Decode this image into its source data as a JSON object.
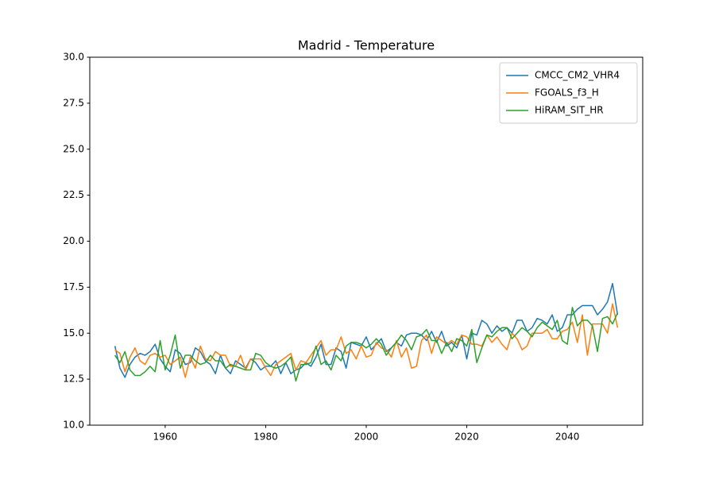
{
  "chart_data": {
    "type": "line",
    "title": "Madrid - Temperature",
    "x": [
      1950,
      1951,
      1952,
      1953,
      1954,
      1955,
      1956,
      1957,
      1958,
      1959,
      1960,
      1961,
      1962,
      1963,
      1964,
      1965,
      1966,
      1967,
      1968,
      1969,
      1970,
      1971,
      1972,
      1973,
      1974,
      1975,
      1976,
      1977,
      1978,
      1979,
      1980,
      1981,
      1982,
      1983,
      1984,
      1985,
      1986,
      1987,
      1988,
      1989,
      1990,
      1991,
      1992,
      1993,
      1994,
      1995,
      1996,
      1997,
      1998,
      1999,
      2000,
      2001,
      2002,
      2003,
      2004,
      2005,
      2006,
      2007,
      2008,
      2009,
      2010,
      2011,
      2012,
      2013,
      2014,
      2015,
      2016,
      2017,
      2018,
      2019,
      2020,
      2021,
      2022,
      2023,
      2024,
      2025,
      2026,
      2027,
      2028,
      2029,
      2030,
      2031,
      2032,
      2033,
      2034,
      2035,
      2036,
      2037,
      2038,
      2039,
      2040,
      2041,
      2042,
      2043,
      2044,
      2045,
      2046,
      2047,
      2048,
      2049,
      2050
    ],
    "series": [
      {
        "name": "CMCC_CM2_VHR4",
        "color": "#1f77b4",
        "values": [
          14.3,
          13.1,
          12.6,
          13.3,
          13.7,
          13.9,
          13.8,
          14.0,
          14.4,
          13.6,
          13.2,
          12.9,
          14.1,
          13.9,
          13.3,
          13.4,
          14.2,
          14.0,
          13.5,
          13.3,
          12.8,
          13.8,
          13.1,
          12.8,
          13.5,
          13.3,
          13.1,
          13.6,
          13.4,
          13.0,
          13.2,
          13.2,
          13.5,
          12.8,
          13.4,
          12.8,
          13.0,
          13.1,
          13.4,
          13.2,
          13.7,
          14.4,
          13.3,
          13.3,
          14.2,
          14.0,
          13.1,
          14.5,
          14.4,
          14.3,
          14.8,
          14.1,
          14.4,
          14.7,
          14.0,
          14.2,
          14.5,
          14.3,
          14.9,
          15.0,
          15.0,
          14.9,
          14.6,
          15.1,
          14.5,
          15.1,
          14.3,
          14.5,
          14.2,
          14.9,
          13.6,
          15.0,
          14.9,
          15.7,
          15.5,
          15.0,
          15.4,
          15.1,
          15.3,
          15.0,
          15.7,
          15.7,
          15.1,
          15.3,
          15.8,
          15.7,
          15.5,
          16.0,
          15.1,
          15.3,
          16.0,
          16.0,
          16.3,
          16.5,
          16.5,
          16.5,
          16.0,
          16.3,
          16.7,
          17.7,
          16.0
        ]
      },
      {
        "name": "FGOALS_f3_H",
        "color": "#ff7f0e",
        "values": [
          14.1,
          13.9,
          12.9,
          13.7,
          14.2,
          13.5,
          13.3,
          13.8,
          13.9,
          13.7,
          13.8,
          13.3,
          13.5,
          13.7,
          12.6,
          13.7,
          13.1,
          14.3,
          13.6,
          13.5,
          14.0,
          13.8,
          13.8,
          13.2,
          13.2,
          13.8,
          13.0,
          13.6,
          13.6,
          13.6,
          13.1,
          12.7,
          13.3,
          13.5,
          13.7,
          13.9,
          13.0,
          13.5,
          13.4,
          13.8,
          14.2,
          14.6,
          13.8,
          14.1,
          14.1,
          14.8,
          13.9,
          14.1,
          13.6,
          14.3,
          13.7,
          13.8,
          14.5,
          14.2,
          14.1,
          13.7,
          14.6,
          13.7,
          14.2,
          13.1,
          13.2,
          14.6,
          14.9,
          13.9,
          14.8,
          14.6,
          14.4,
          14.6,
          14.4,
          14.9,
          14.8,
          14.4,
          14.4,
          14.3,
          14.9,
          14.5,
          14.8,
          14.4,
          14.1,
          15.0,
          14.7,
          14.1,
          14.3,
          15.0,
          15.0,
          15.0,
          15.2,
          14.7,
          14.7,
          15.1,
          15.2,
          15.6,
          14.5,
          16.0,
          13.8,
          15.5,
          15.5,
          15.5,
          15.0,
          16.6,
          15.3
        ]
      },
      {
        "name": "HiRAM_SIT_HR",
        "color": "#2ca02c",
        "values": [
          13.8,
          13.4,
          14.0,
          13.0,
          12.7,
          12.7,
          12.9,
          13.2,
          12.9,
          14.6,
          13.0,
          13.8,
          14.9,
          13.1,
          13.8,
          13.8,
          13.5,
          13.3,
          13.4,
          13.8,
          13.5,
          13.5,
          13.1,
          13.3,
          13.2,
          13.1,
          13.0,
          13.0,
          13.9,
          13.8,
          13.4,
          13.2,
          13.1,
          13.2,
          13.4,
          13.7,
          12.4,
          13.3,
          13.3,
          13.4,
          14.3,
          13.3,
          13.5,
          13.0,
          13.8,
          13.5,
          14.3,
          14.5,
          14.5,
          14.4,
          14.2,
          14.4,
          14.7,
          14.4,
          13.8,
          14.2,
          14.5,
          14.9,
          14.6,
          14.1,
          14.8,
          14.9,
          15.2,
          14.6,
          14.6,
          13.9,
          14.5,
          14.0,
          14.7,
          14.6,
          14.3,
          15.2,
          13.4,
          14.2,
          14.9,
          14.8,
          15.1,
          15.3,
          15.3,
          14.7,
          15.0,
          15.3,
          15.1,
          14.8,
          15.3,
          15.6,
          15.4,
          15.2,
          15.7,
          14.6,
          14.4,
          16.4,
          15.4,
          15.7,
          15.7,
          15.4,
          14.0,
          15.8,
          15.9,
          15.5,
          16.1
        ]
      }
    ],
    "xlim": [
      1945,
      2055
    ],
    "xticks": [
      1960,
      1980,
      2000,
      2020,
      2040
    ],
    "ylim": [
      10,
      30
    ],
    "yticks": [
      {
        "value": 10,
        "label": "10.0"
      },
      {
        "value": 12.5,
        "label": "12.5"
      },
      {
        "value": 15,
        "label": "15.0"
      },
      {
        "value": 17.5,
        "label": "17.5"
      },
      {
        "value": 20,
        "label": "20.0"
      },
      {
        "value": 22.5,
        "label": "22.5"
      },
      {
        "value": 25,
        "label": "25.0"
      },
      {
        "value": 27.5,
        "label": "27.5"
      },
      {
        "value": 30,
        "label": "30.0"
      }
    ],
    "grid": false,
    "legend": "upper right"
  }
}
